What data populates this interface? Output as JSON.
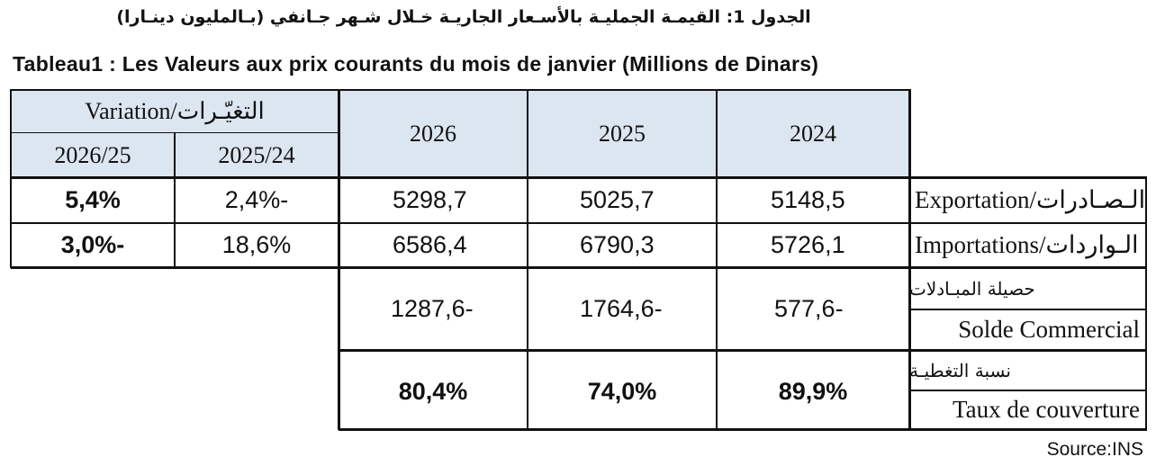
{
  "title_ar": "الجدول 1: القيمـة الجمليـة بالأسـعار الجاريـة خـلال شـهر جـانفي (بـالمليون دينـارا)",
  "title_fr": "Tableau1 : Les Valeurs aux prix courants du mois de janvier (Millions de Dinars)",
  "header": {
    "variation": "Variation/التغيّـرات",
    "var_2026_25": "2026/25",
    "var_2025_24": "2025/24",
    "y2026": "2026",
    "y2025": "2025",
    "y2024": "2024"
  },
  "rows": {
    "exports": {
      "label": "Exportation/الـصـادرات",
      "var_2026_25": "5,4%",
      "var_2025_24": "2,4%-",
      "y2026": "5298,7",
      "y2025": "5025,7",
      "y2024": "5148,5"
    },
    "imports": {
      "label": "Importations/الـواردات",
      "var_2026_25": "3,0%-",
      "var_2025_24": "18,6%",
      "y2026": "6586,4",
      "y2025": "6790,3",
      "y2024": "5726,1"
    },
    "balance": {
      "label_ar": "حصيلة المبـادلات",
      "label_fr": "Solde Commercial",
      "y2026": "1287,6-",
      "y2025": "1764,6-",
      "y2024": "577,6-"
    },
    "coverage": {
      "label_ar": "نسبة التغطيـة",
      "label_fr": "Taux de couverture",
      "y2026": "80,4%",
      "y2025": "74,0%",
      "y2024": "89,9%"
    }
  },
  "source": "Source:INS",
  "colors": {
    "header_bg": "#dce6f1",
    "border": "#111111"
  }
}
